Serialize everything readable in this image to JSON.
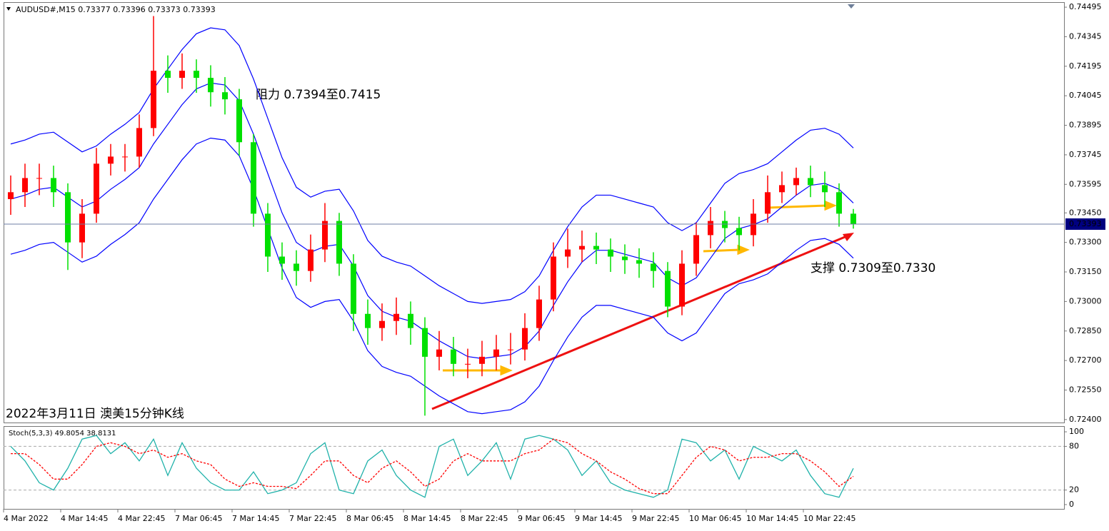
{
  "chart_data": [
    {
      "type": "candlestick",
      "title": "AUDUSD#,M15  0.73377 0.73396 0.73373 0.73393",
      "annotations": [
        "阻力 0.7394至0.7415",
        "支撑 0.7309至0.7330",
        "2022年3月11日 澳美15分钟K线"
      ],
      "categories": [
        "4 Mar 2022",
        null,
        null,
        null,
        "4 Mar 14:45",
        null,
        null,
        null,
        "4 Mar 22:45",
        null,
        null,
        null,
        "7 Mar 06:45",
        null,
        null,
        null,
        "7 Mar 14:45",
        null,
        null,
        null,
        "7 Mar 22:45",
        null,
        null,
        null,
        "8 Mar 06:45",
        null,
        null,
        null,
        "8 Mar 14:45",
        null,
        null,
        null,
        "8 Mar 22:45",
        null,
        null,
        null,
        "9 Mar 06:45",
        null,
        null,
        null,
        "9 Mar 14:45",
        null,
        null,
        null,
        "9 Mar 22:45",
        null,
        null,
        null,
        "10 Mar 06:45",
        null,
        null,
        null,
        "10 Mar 14:45",
        null,
        null,
        null,
        "10 Mar 22:45",
        null,
        null,
        null
      ],
      "open": [
        0.7352,
        0.73555,
        0.73627,
        0.73627,
        0.73555,
        0.733,
        0.73446,
        0.737,
        0.73736,
        0.73736,
        0.73881,
        0.74172,
        0.74136,
        0.74172,
        0.74136,
        0.74063,
        0.74027,
        0.73809,
        0.73446,
        0.73228,
        0.73192,
        0.73155,
        0.73264,
        0.73409,
        0.73192,
        0.72937,
        0.72865,
        0.72901,
        0.72937,
        0.72865,
        0.72719,
        0.72756,
        0.72683,
        0.72683,
        0.72719,
        0.72756,
        0.72756,
        0.72865,
        0.7301,
        0.73228,
        0.73264,
        0.73282,
        0.73264,
        0.73228,
        0.7321,
        0.73192,
        0.73155,
        0.72974,
        0.73192,
        0.73337,
        0.73409,
        0.73373,
        0.73337,
        0.73446,
        0.73555,
        0.73591,
        0.73627,
        0.73591,
        0.73555,
        0.73446
      ],
      "high": [
        0.7364,
        0.737,
        0.737,
        0.7369,
        0.736,
        0.7352,
        0.7378,
        0.738,
        0.738,
        0.7395,
        0.7445,
        0.7425,
        0.7426,
        0.7423,
        0.742,
        0.7414,
        0.7408,
        0.7385,
        0.735,
        0.733,
        0.7326,
        0.7334,
        0.735,
        0.7345,
        0.7324,
        0.7301,
        0.7299,
        0.7302,
        0.73,
        0.7292,
        0.7285,
        0.7282,
        0.7276,
        0.728,
        0.7283,
        0.7284,
        0.7294,
        0.7308,
        0.733,
        0.7337,
        0.7336,
        0.7335,
        0.7332,
        0.7329,
        0.7327,
        0.7325,
        0.732,
        0.7326,
        0.734,
        0.7348,
        0.7346,
        0.7343,
        0.7352,
        0.7364,
        0.7366,
        0.7368,
        0.7369,
        0.7366,
        0.736,
        0.7347
      ],
      "low": [
        0.7344,
        0.7348,
        0.7354,
        0.7348,
        0.7316,
        0.7322,
        0.734,
        0.7364,
        0.7366,
        0.7368,
        0.7384,
        0.7406,
        0.7408,
        0.7406,
        0.7399,
        0.7395,
        0.7374,
        0.7338,
        0.7315,
        0.7311,
        0.7308,
        0.731,
        0.732,
        0.7313,
        0.7285,
        0.7278,
        0.728,
        0.7283,
        0.7278,
        0.7242,
        0.7265,
        0.7262,
        0.7261,
        0.7262,
        0.7265,
        0.7268,
        0.727,
        0.728,
        0.7295,
        0.7317,
        0.732,
        0.7319,
        0.7315,
        0.7314,
        0.7312,
        0.7307,
        0.7292,
        0.7293,
        0.7313,
        0.7327,
        0.733,
        0.7326,
        0.7328,
        0.734,
        0.735,
        0.7354,
        0.7353,
        0.7348,
        0.7338,
        0.7337
      ],
      "close": [
        0.73555,
        0.73627,
        0.73627,
        0.73555,
        0.733,
        0.73446,
        0.737,
        0.73736,
        0.73736,
        0.73881,
        0.74172,
        0.74136,
        0.74172,
        0.74136,
        0.74063,
        0.74027,
        0.73809,
        0.73446,
        0.73228,
        0.73192,
        0.73155,
        0.73264,
        0.73409,
        0.73192,
        0.72937,
        0.72865,
        0.72901,
        0.72937,
        0.72865,
        0.72719,
        0.72756,
        0.72683,
        0.72683,
        0.72719,
        0.72756,
        0.72756,
        0.72865,
        0.7301,
        0.73228,
        0.73264,
        0.73282,
        0.73264,
        0.73228,
        0.7321,
        0.73192,
        0.73155,
        0.72974,
        0.73192,
        0.73337,
        0.73409,
        0.73373,
        0.73337,
        0.73446,
        0.73555,
        0.73591,
        0.73627,
        0.73591,
        0.73555,
        0.73446,
        0.73393
      ],
      "up_color": "#ff0000",
      "down_color": "#00e000",
      "bands": [
        {
          "color": "#0000ff",
          "values": [
            0.738,
            0.7382,
            0.7385,
            0.7386,
            0.7381,
            0.7376,
            0.7379,
            0.7385,
            0.739,
            0.7396,
            0.7408,
            0.7418,
            0.7428,
            0.7436,
            0.7439,
            0.7438,
            0.743,
            0.7413,
            0.7393,
            0.7373,
            0.7358,
            0.7353,
            0.7356,
            0.7357,
            0.7346,
            0.7331,
            0.7323,
            0.732,
            0.7318,
            0.7313,
            0.7308,
            0.7304,
            0.73,
            0.7299,
            0.73,
            0.7301,
            0.7305,
            0.7313,
            0.7326,
            0.7338,
            0.7348,
            0.7354,
            0.7354,
            0.7352,
            0.735,
            0.7348,
            0.734,
            0.7336,
            0.734,
            0.735,
            0.736,
            0.7365,
            0.7367,
            0.737,
            0.7376,
            0.7382,
            0.7387,
            0.7388,
            0.7385,
            0.7378
          ]
        },
        {
          "color": "#0000ff",
          "values": [
            0.7352,
            0.7354,
            0.7357,
            0.7358,
            0.7353,
            0.7348,
            0.7351,
            0.7357,
            0.7362,
            0.7368,
            0.738,
            0.739,
            0.74,
            0.7408,
            0.7411,
            0.741,
            0.7402,
            0.7385,
            0.7365,
            0.7345,
            0.733,
            0.7325,
            0.7328,
            0.7329,
            0.7318,
            0.7303,
            0.7295,
            0.7292,
            0.729,
            0.7285,
            0.728,
            0.7276,
            0.7272,
            0.7271,
            0.7272,
            0.7273,
            0.7277,
            0.7285,
            0.7298,
            0.731,
            0.732,
            0.7326,
            0.7326,
            0.7324,
            0.7322,
            0.732,
            0.7312,
            0.7308,
            0.7312,
            0.7322,
            0.7332,
            0.7337,
            0.7339,
            0.7342,
            0.7348,
            0.7354,
            0.7359,
            0.736,
            0.7357,
            0.735
          ]
        },
        {
          "color": "#0000ff",
          "values": [
            0.7324,
            0.7326,
            0.7329,
            0.733,
            0.7325,
            0.732,
            0.7323,
            0.7329,
            0.7334,
            0.734,
            0.7352,
            0.7362,
            0.7372,
            0.738,
            0.7383,
            0.7382,
            0.7374,
            0.7357,
            0.7337,
            0.7317,
            0.7302,
            0.7297,
            0.73,
            0.7301,
            0.729,
            0.7275,
            0.7267,
            0.7264,
            0.7262,
            0.7257,
            0.7252,
            0.7248,
            0.7244,
            0.7243,
            0.7244,
            0.7245,
            0.7249,
            0.7257,
            0.727,
            0.7282,
            0.7292,
            0.7298,
            0.7298,
            0.7296,
            0.7294,
            0.7292,
            0.7284,
            0.728,
            0.7284,
            0.7294,
            0.7304,
            0.7309,
            0.7311,
            0.7314,
            0.732,
            0.7326,
            0.7331,
            0.7332,
            0.7329,
            0.7322
          ]
        }
      ],
      "current_price": 0.73393,
      "ylim": [
        0.72385,
        0.74517
      ],
      "yticks": [
        0.74495,
        0.74345,
        0.74195,
        0.74045,
        0.73895,
        0.73745,
        0.73595,
        {
          "value": 0.7345,
          "label": "0.73450"
        },
        {
          "value": 0.733,
          "label": "0.73300"
        },
        {
          "value": 0.7315,
          "label": "0.73150"
        },
        {
          "value": 0.73,
          "label": "0.73000"
        },
        {
          "value": 0.7285,
          "label": "0.72850"
        },
        {
          "value": 0.727,
          "label": "0.72700"
        },
        {
          "value": 0.7255,
          "label": "0.72550"
        },
        {
          "value": 0.724,
          "label": "0.72400"
        }
      ]
    },
    {
      "type": "line",
      "title": "Stoch(5,3,3) 49.8054 38.8131",
      "series": [
        {
          "color": "#20b2aa",
          "values": [
            80,
            60,
            30,
            20,
            50,
            90,
            95,
            70,
            85,
            60,
            90,
            40,
            85,
            50,
            30,
            20,
            20,
            45,
            15,
            20,
            30,
            70,
            85,
            20,
            15,
            60,
            75,
            40,
            20,
            10,
            80,
            90,
            40,
            60,
            85,
            35,
            90,
            95,
            90,
            75,
            40,
            60,
            30,
            20,
            15,
            10,
            20,
            90,
            85,
            60,
            75,
            35,
            80,
            70,
            60,
            75,
            40,
            15,
            10,
            49.8054
          ]
        },
        {
          "color": "#ff0000",
          "dashed": true,
          "values": [
            70,
            70,
            55,
            35,
            35,
            55,
            80,
            85,
            80,
            70,
            75,
            65,
            70,
            60,
            55,
            35,
            25,
            30,
            25,
            25,
            22,
            40,
            60,
            60,
            40,
            30,
            50,
            60,
            45,
            25,
            35,
            60,
            70,
            60,
            60,
            60,
            70,
            75,
            90,
            85,
            70,
            60,
            45,
            35,
            22,
            15,
            15,
            40,
            65,
            80,
            75,
            60,
            65,
            65,
            70,
            70,
            60,
            45,
            25,
            38.8131
          ]
        }
      ],
      "levels": [
        20,
        80
      ],
      "ylim": [
        -5.9,
        106.9
      ],
      "yticks": [
        0,
        20,
        80,
        100
      ]
    }
  ]
}
